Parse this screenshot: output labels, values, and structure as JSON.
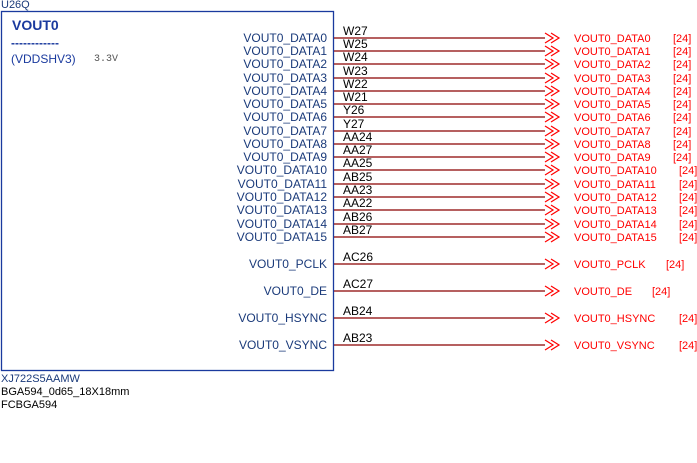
{
  "component": {
    "refdes": "U26Q",
    "block_title": "VOUT0",
    "dashes": "------------",
    "power_domain": "(VDDSHV3)",
    "voltage": "3.3V",
    "part_number": "XJ722S5AAMW",
    "package": "BGA594_0d65_18X18mm",
    "footprint": "FCBGA594"
  },
  "pins": [
    {
      "name": "VOUT0_DATA0",
      "ball": "W27",
      "net": "VOUT0_DATA0",
      "page": "[24]"
    },
    {
      "name": "VOUT0_DATA1",
      "ball": "W25",
      "net": "VOUT0_DATA1",
      "page": "[24]"
    },
    {
      "name": "VOUT0_DATA2",
      "ball": "W24",
      "net": "VOUT0_DATA2",
      "page": "[24]"
    },
    {
      "name": "VOUT0_DATA3",
      "ball": "W23",
      "net": "VOUT0_DATA3",
      "page": "[24]"
    },
    {
      "name": "VOUT0_DATA4",
      "ball": "W22",
      "net": "VOUT0_DATA4",
      "page": "[24]"
    },
    {
      "name": "VOUT0_DATA5",
      "ball": "W21",
      "net": "VOUT0_DATA5",
      "page": "[24]"
    },
    {
      "name": "VOUT0_DATA6",
      "ball": "Y26",
      "net": "VOUT0_DATA6",
      "page": "[24]"
    },
    {
      "name": "VOUT0_DATA7",
      "ball": "Y27",
      "net": "VOUT0_DATA7",
      "page": "[24]"
    },
    {
      "name": "VOUT0_DATA8",
      "ball": "AA24",
      "net": "VOUT0_DATA8",
      "page": "[24]"
    },
    {
      "name": "VOUT0_DATA9",
      "ball": "AA27",
      "net": "VOUT0_DATA9",
      "page": "[24]"
    },
    {
      "name": "VOUT0_DATA10",
      "ball": "AA25",
      "net": "VOUT0_DATA10",
      "page": "[24]"
    },
    {
      "name": "VOUT0_DATA11",
      "ball": "AB25",
      "net": "VOUT0_DATA11",
      "page": "[24]"
    },
    {
      "name": "VOUT0_DATA12",
      "ball": "AA23",
      "net": "VOUT0_DATA12",
      "page": "[24]"
    },
    {
      "name": "VOUT0_DATA13",
      "ball": "AA22",
      "net": "VOUT0_DATA13",
      "page": "[24]"
    },
    {
      "name": "VOUT0_DATA14",
      "ball": "AB26",
      "net": "VOUT0_DATA14",
      "page": "[24]"
    },
    {
      "name": "VOUT0_DATA15",
      "ball": "AB27",
      "net": "VOUT0_DATA15",
      "page": "[24]"
    },
    {
      "name": "VOUT0_PCLK",
      "ball": "AC26",
      "net": "VOUT0_PCLK",
      "page": "[24]"
    },
    {
      "name": "VOUT0_DE",
      "ball": "AC27",
      "net": "VOUT0_DE",
      "page": "[24]"
    },
    {
      "name": "VOUT0_HSYNC",
      "ball": "AB24",
      "net": "VOUT0_HSYNC",
      "page": "[24]"
    },
    {
      "name": "VOUT0_VSYNC",
      "ball": "AB23",
      "net": "VOUT0_VSYNC",
      "page": "[24]"
    }
  ],
  "colors": {
    "component": "#1a3a9e",
    "pin_text": "#1a3a7a",
    "wire": "#8b0000",
    "offpage": "#ff0000",
    "ball_text": "#000000",
    "meta_text": "#1a3a7a"
  }
}
